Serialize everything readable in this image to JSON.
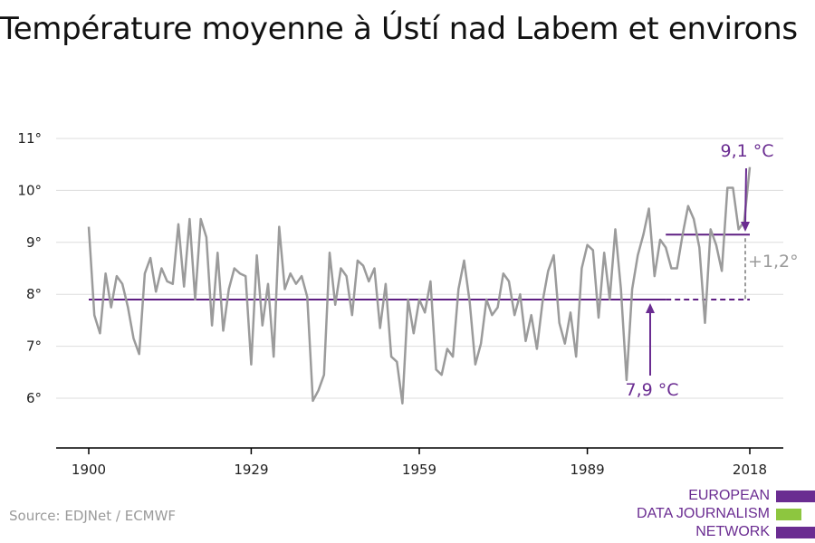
{
  "title": "Température moyenne à Ústí nad Labem et environs",
  "source": "Source: EDJNet / ECMWF",
  "logo": {
    "lines": [
      "EUROPEAN",
      "DATA JOURNALISM",
      "NETWORK"
    ],
    "colors": {
      "text": "#6a2c91",
      "accent_purple": "#6a2c91",
      "accent_green": "#8dc63f"
    }
  },
  "colors": {
    "series": "#9b9b9b",
    "average": "#5e1e82",
    "annotation": "#6a2c91",
    "difference": "#9b9b9b",
    "grid": "#dddddd",
    "axis": "#000000"
  },
  "chart_data": {
    "type": "line",
    "title": "Température moyenne à Ústí nad Labem et environs",
    "xlabel": "",
    "ylabel": "",
    "xlim": [
      1900,
      2018
    ],
    "ylim": [
      5,
      11
    ],
    "x_ticks": [
      1900,
      1929,
      1959,
      1989,
      2018
    ],
    "y_ticks": [
      6,
      7,
      8,
      9,
      10,
      11
    ],
    "y_tick_labels": [
      "6°",
      "7°",
      "8°",
      "9°",
      "10°",
      "11°"
    ],
    "grid": true,
    "series": [
      {
        "x_start": 1900,
        "values": [
          9.3,
          7.6,
          7.25,
          8.4,
          7.75,
          8.35,
          8.2,
          7.75,
          7.15,
          6.85,
          8.4,
          8.7,
          8.05,
          8.5,
          8.25,
          8.2,
          9.35,
          8.15,
          9.45,
          7.9,
          9.45,
          9.1,
          7.4,
          8.8,
          7.3,
          8.1,
          8.5,
          8.4,
          8.35,
          6.65,
          8.75,
          7.4,
          8.2,
          6.8,
          9.3,
          8.1,
          8.4,
          8.2,
          8.35,
          7.95,
          5.95,
          6.15,
          6.45,
          8.8,
          7.8,
          8.5,
          8.35,
          7.6,
          8.65,
          8.55,
          8.25,
          8.5,
          7.35,
          8.2,
          6.8,
          6.7,
          5.9,
          7.9,
          7.25,
          7.9,
          7.65,
          8.25,
          6.55,
          6.45,
          6.95,
          6.8,
          8.1,
          8.65,
          7.85,
          6.65,
          7.05,
          7.9,
          7.6,
          7.75,
          8.4,
          8.25,
          7.6,
          8.0,
          7.1,
          7.6,
          6.95,
          7.85,
          8.45,
          8.75,
          7.45,
          7.05,
          7.65,
          6.8,
          8.5,
          8.95,
          8.85,
          7.55,
          8.8,
          7.9,
          9.25,
          8.1,
          6.35,
          8.1,
          8.75,
          9.15,
          9.65,
          8.35,
          9.05,
          8.9,
          8.5,
          8.5,
          9.15,
          9.7,
          9.45,
          8.9,
          7.45,
          9.25,
          8.95,
          8.45,
          10.05,
          10.05,
          9.25,
          9.4,
          10.45
        ]
      }
    ],
    "reference_lines": [
      {
        "label": "7,9 °C",
        "value": 7.9,
        "x_from": 1900,
        "x_to": 2018,
        "solid_to": 2003
      },
      {
        "label": "9,1 °C",
        "value": 9.15,
        "x_from": 2003,
        "x_to": 2018
      }
    ],
    "annotations": {
      "difference": "+1,2°"
    }
  }
}
